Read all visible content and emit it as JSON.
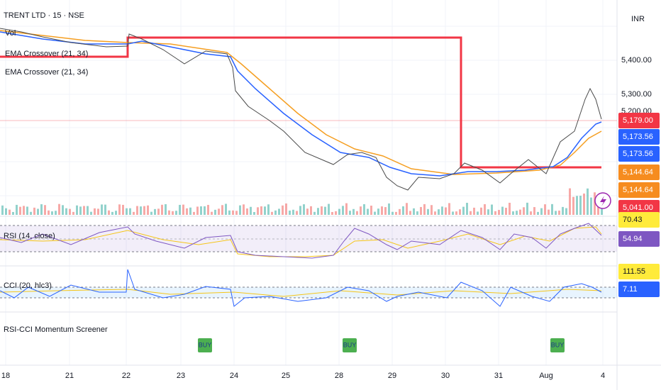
{
  "header": {
    "title": "TRENT LTD · 15 · NSE",
    "currency": "INR"
  },
  "legend": [
    "Vol",
    "EMA Crossover (21, 34)",
    "EMA Crossover (21, 34)"
  ],
  "price_axis": [
    "5,400.00",
    "5,300.00",
    "5,200.00"
  ],
  "price_tags": [
    {
      "label": "5,179.00",
      "color": "#f23645"
    },
    {
      "label": "5,173.56",
      "color": "#2962ff"
    },
    {
      "label": "5,173.56",
      "color": "#2962ff"
    },
    {
      "label": "5,144.64",
      "color": "#f68c1f"
    },
    {
      "label": "5,144.64",
      "color": "#f68c1f"
    },
    {
      "label": "5,041.00",
      "color": "#f23645"
    }
  ],
  "rsi": {
    "title": "RSI (14, close)",
    "tags": [
      {
        "label": "70.43",
        "color": "#ffeb3b",
        "text_color": "#131722"
      },
      {
        "label": "54.94",
        "color": "#7e57c2",
        "text_color": "#ffffff"
      }
    ]
  },
  "cci": {
    "title": "CCI (20, hlc3)",
    "tags": [
      {
        "label": "111.55",
        "color": "#ffeb3b",
        "text_color": "#131722"
      },
      {
        "label": "7.11",
        "color": "#2962ff",
        "text_color": "#ffffff"
      }
    ]
  },
  "screener": {
    "title": "RSI-CCI Momentum Screener",
    "signals": [
      "BUY",
      "BUY",
      "BUY"
    ]
  },
  "time_axis": [
    "18",
    "21",
    "22",
    "23",
    "24",
    "25",
    "28",
    "29",
    "30",
    "31",
    "Aug",
    "4"
  ]
}
